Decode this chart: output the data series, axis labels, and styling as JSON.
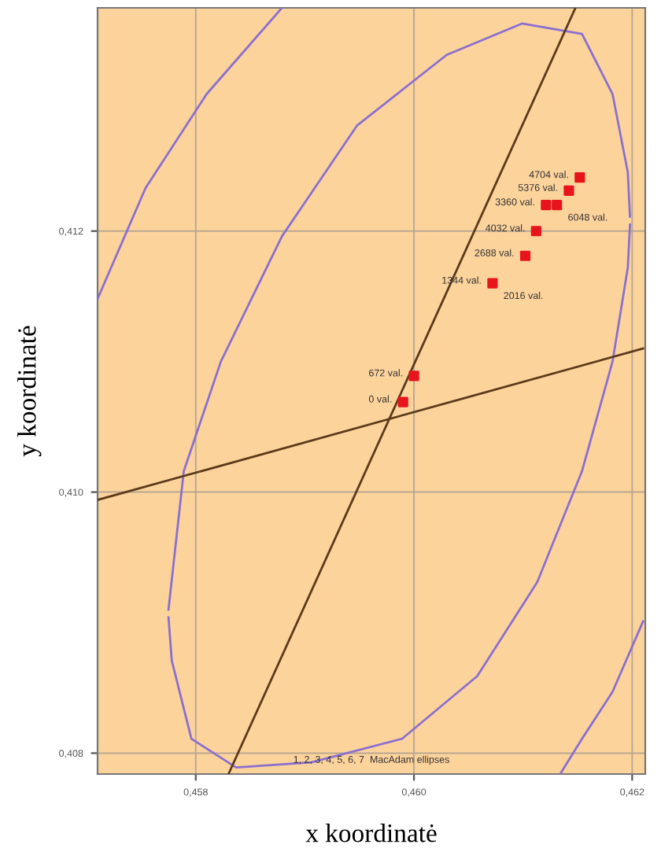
{
  "chart_data": {
    "type": "scatter",
    "xlabel": "x koordinatė",
    "ylabel": "y koordinatė",
    "xlim": [
      0.4571,
      0.46212
    ],
    "ylim": [
      0.40784,
      0.41371
    ],
    "xticks": [
      {
        "value": 0.458,
        "label": "0,458"
      },
      {
        "value": 0.46,
        "label": "0,460"
      },
      {
        "value": 0.462,
        "label": "0,462"
      }
    ],
    "yticks": [
      {
        "value": 0.408,
        "label": "0,408"
      },
      {
        "value": 0.41,
        "label": "0,410"
      },
      {
        "value": 0.412,
        "label": "0,412"
      }
    ],
    "grid": true,
    "legend": false,
    "series": [
      {
        "type": "line",
        "color": "#8a6fd0",
        "marker": "none",
        "x": [
          0.45775,
          0.45789,
          0.45823,
          0.45879,
          0.45948,
          0.4603,
          0.46099,
          0.46154,
          0.46182,
          0.46196,
          0.46198
        ],
        "values": [
          0.4091,
          0.41016,
          0.411,
          0.41196,
          0.41281,
          0.41335,
          0.41359,
          0.41351,
          0.41305,
          0.41245,
          0.41211
        ]
      },
      {
        "type": "line",
        "color": "#8a6fd0",
        "marker": "none",
        "x": [
          0.45775,
          0.45778,
          0.45796,
          0.45837,
          0.45906,
          0.45989,
          0.46058,
          0.46113,
          0.46154,
          0.46182,
          0.46196,
          0.46198
        ],
        "values": [
          0.40904,
          0.40871,
          0.40811,
          0.40789,
          0.40793,
          0.40811,
          0.40859,
          0.40931,
          0.41016,
          0.411,
          0.41172,
          0.41205
        ]
      },
      {
        "type": "line",
        "color": "#8a6fd0",
        "marker": "none",
        "x": [
          0.4571,
          0.45754,
          0.4581,
          0.45879
        ],
        "values": [
          0.41148,
          0.41233,
          0.41305,
          0.41371
        ]
      },
      {
        "type": "line",
        "color": "#8a6fd0",
        "marker": "none",
        "x": [
          0.46134,
          0.46154,
          0.46182,
          0.4621
        ],
        "values": [
          0.40784,
          0.40811,
          0.40847,
          0.40901
        ]
      },
      {
        "type": "line",
        "color": "#5a3a1a",
        "marker": "none",
        "x": [
          0.4583,
          0.46148
        ],
        "values": [
          0.40784,
          0.41371
        ]
      },
      {
        "type": "line",
        "color": "#5a3a1a",
        "marker": "none",
        "x": [
          0.4571,
          0.4621
        ],
        "values": [
          0.40994,
          0.4111
        ]
      },
      {
        "color": "#e8141c",
        "marker": "square",
        "x": [
          0.4599,
          0.46,
          0.46072,
          0.46102,
          0.46112,
          0.46121,
          0.46131,
          0.46142,
          0.46152
        ],
        "values": [
          0.41069,
          0.41089,
          0.4116,
          0.41181,
          0.412,
          0.4122,
          0.4122,
          0.41231,
          0.41241
        ]
      }
    ],
    "annotations": [
      {
        "text": "0 val.",
        "x": 0.4599,
        "y": 0.41069
      },
      {
        "text": "672 val.",
        "x": 0.46,
        "y": 0.41089
      },
      {
        "text": "1344 val.",
        "x": 0.46072,
        "y": 0.4116
      },
      {
        "text": "2016 val.",
        "x": 0.46072,
        "y": 0.4116
      },
      {
        "text": "2688 val.",
        "x": 0.46102,
        "y": 0.41181
      },
      {
        "text": "4032 val.",
        "x": 0.46112,
        "y": 0.412
      },
      {
        "text": "3360 val.",
        "x": 0.46121,
        "y": 0.4122
      },
      {
        "text": "6048 val.",
        "x": 0.46131,
        "y": 0.4122
      },
      {
        "text": "5376 val.",
        "x": 0.46142,
        "y": 0.41231
      },
      {
        "text": "4704 val.",
        "x": 0.46152,
        "y": 0.41241
      },
      "1, 2, 3, 4, 5, 6, 7  MacAdam ellipses"
    ]
  }
}
